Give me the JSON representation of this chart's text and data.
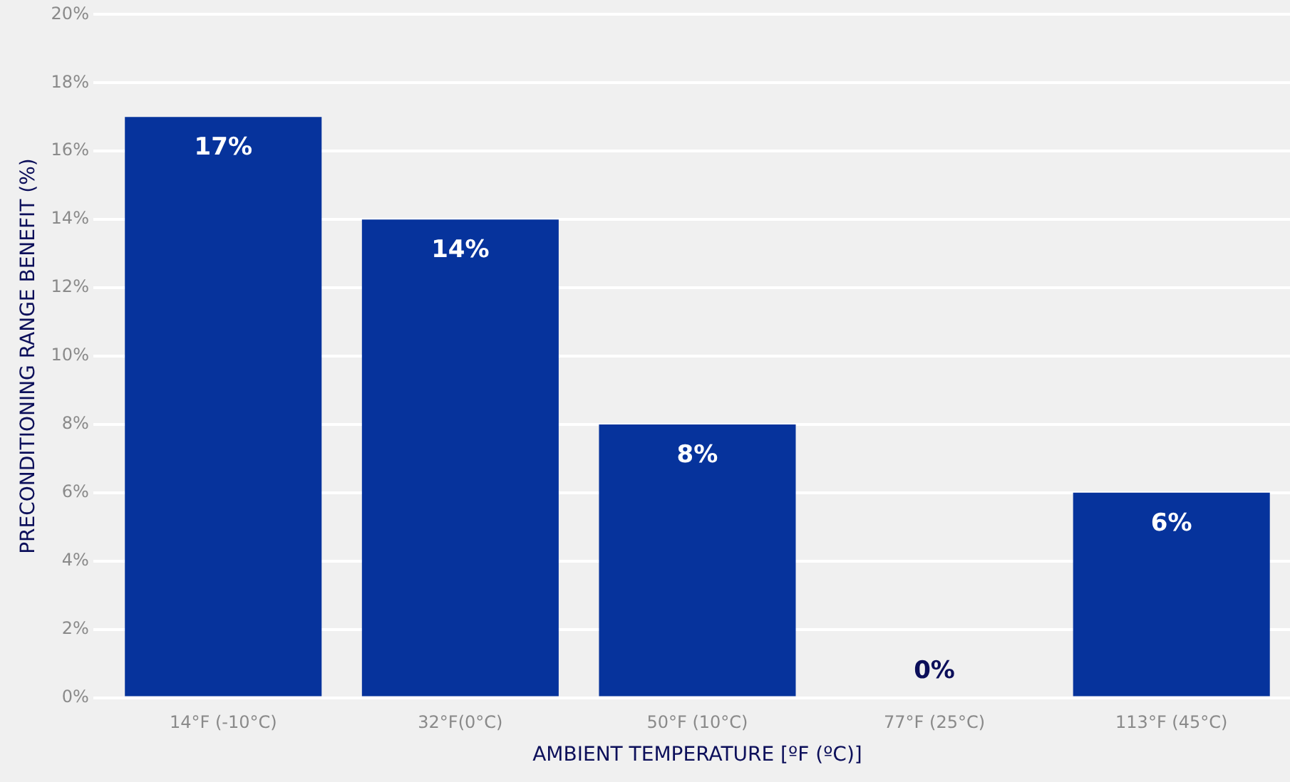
{
  "chart_data": {
    "type": "bar",
    "xlabel": "AMBIENT TEMPERATURE [ºF (ºC)]",
    "ylabel": "PRECONDITIONING RANGE BENEFIT (%)",
    "categories": [
      "14°F (-10°C)",
      "32°F(0°C)",
      "50°F (10°C)",
      "77°F (25°C)",
      "113°F (45°C)"
    ],
    "values": [
      17,
      14,
      8,
      0,
      6
    ],
    "value_labels": [
      "17%",
      "14%",
      "8%",
      "0%",
      "6%"
    ],
    "color": "#06339c",
    "ylim": [
      0,
      20
    ],
    "yticks": [
      {
        "value": 0,
        "label": "0%"
      },
      {
        "value": 2,
        "label": "2%"
      },
      {
        "value": 4,
        "label": "4%"
      },
      {
        "value": 6,
        "label": "6%"
      },
      {
        "value": 8,
        "label": "8%"
      },
      {
        "value": 10,
        "label": "10%"
      },
      {
        "value": 12,
        "label": "12%"
      },
      {
        "value": 14,
        "label": "14%"
      },
      {
        "value": 16,
        "label": "16%"
      },
      {
        "value": 18,
        "label": "18%"
      },
      {
        "value": 20,
        "label": "20%"
      }
    ],
    "grid": "y",
    "legend": false
  }
}
